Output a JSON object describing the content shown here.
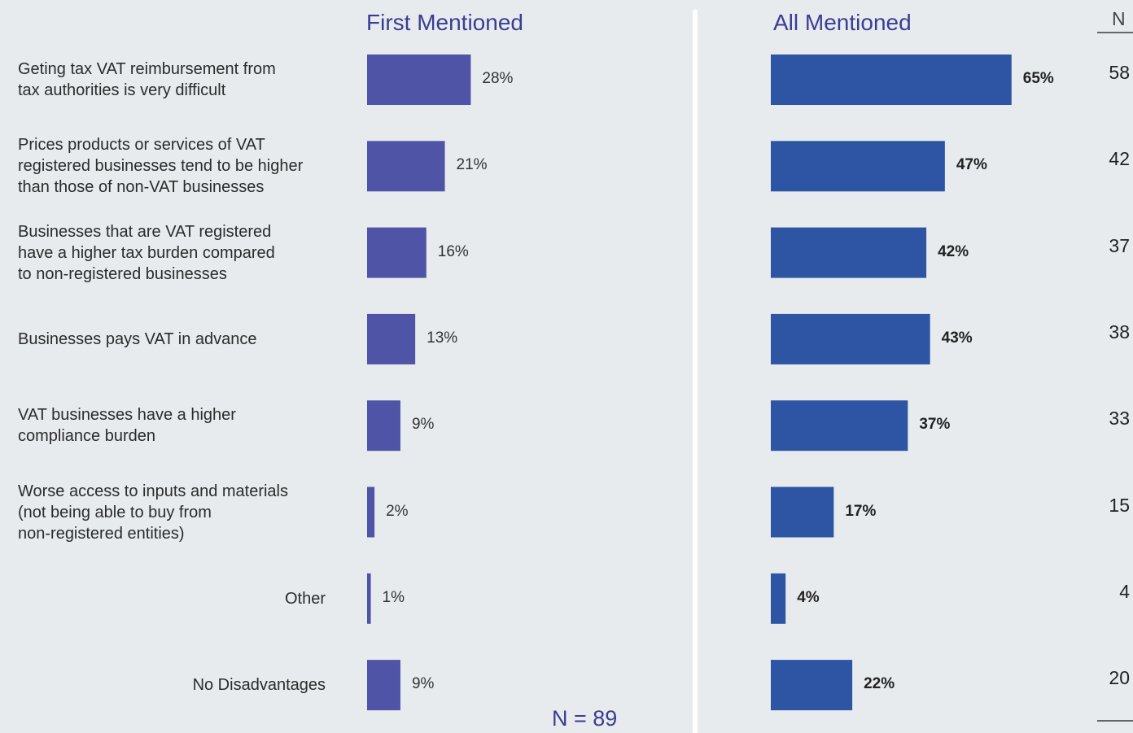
{
  "chart_data": [
    {
      "type": "bar",
      "orientation": "horizontal",
      "title": "First Mentioned",
      "color": "#5054a6",
      "categories": [
        "Geting tax VAT reimbursement from\ntax authorities is very difficult",
        "Prices products or services of VAT\nregistered businesses tend to be higher\nthan those of non-VAT businesses",
        "Businesses that are VAT registered\nhave a higher tax burden compared\nto non-registered businesses",
        "Businesses pays VAT in advance",
        "VAT businesses have a higher\ncompliance burden",
        "Worse access to inputs and materials\n(not being able to buy from\nnon-registered entities)",
        "Other",
        "No Disadvantages"
      ],
      "values": [
        28,
        21,
        16,
        13,
        9,
        2,
        1,
        9
      ],
      "value_labels": [
        "28%",
        "21%",
        "16%",
        "13%",
        "9%",
        "2%",
        "1%",
        "9%"
      ],
      "note": "N = 89"
    },
    {
      "type": "bar",
      "orientation": "horizontal",
      "title": "All Mentioned",
      "color": "#2d55a3",
      "values": [
        65,
        47,
        42,
        43,
        37,
        17,
        4,
        22
      ],
      "value_labels": [
        "65%",
        "47%",
        "42%",
        "43%",
        "37%",
        "17%",
        "4%",
        "22%"
      ]
    }
  ],
  "n_column": {
    "header": "N",
    "values": [
      "58",
      "42",
      "37",
      "38",
      "33",
      "15",
      "4",
      "20"
    ]
  }
}
